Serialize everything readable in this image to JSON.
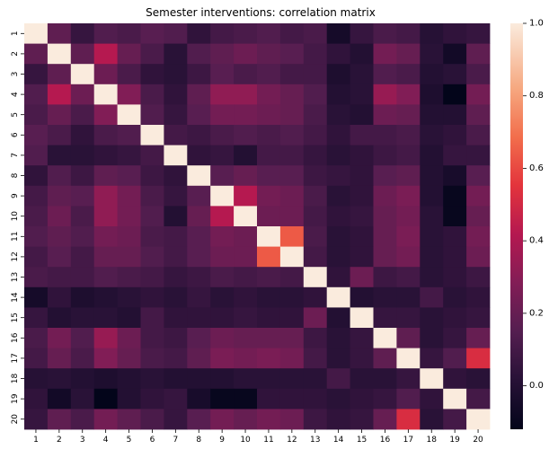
{
  "chart_data": {
    "type": "heatmap",
    "title": "Semester interventions: correlation matrix",
    "xlabel": "",
    "ylabel": "",
    "x_tick_labels": [
      "1",
      "2",
      "3",
      "4",
      "5",
      "6",
      "7",
      "8",
      "9",
      "10",
      "11",
      "12",
      "13",
      "14",
      "15",
      "16",
      "17",
      "18",
      "19",
      "20"
    ],
    "y_tick_labels": [
      "1",
      "2",
      "3",
      "4",
      "5",
      "6",
      "7",
      "8",
      "9",
      "10",
      "11",
      "12",
      "13",
      "14",
      "15",
      "16",
      "17",
      "18",
      "19",
      "20"
    ],
    "colorbar": {
      "range": [
        -0.12,
        1.0
      ],
      "ticks": [
        -0.0,
        0.2,
        0.4,
        0.6,
        0.8,
        1.0
      ],
      "tick_labels": [
        "0.0",
        "0.2",
        "0.4",
        "0.6",
        "0.8",
        "1.0"
      ],
      "colormap": "rocket"
    },
    "matrix": [
      [
        1.0,
        0.18,
        0.06,
        0.14,
        0.12,
        0.16,
        0.14,
        0.04,
        0.1,
        0.12,
        0.14,
        0.1,
        0.12,
        -0.05,
        0.06,
        0.12,
        0.1,
        0.01,
        0.04,
        0.06
      ],
      [
        0.18,
        1.0,
        0.18,
        0.42,
        0.2,
        0.12,
        0.02,
        0.14,
        0.18,
        0.22,
        0.18,
        0.16,
        0.1,
        0.04,
        0.0,
        0.24,
        0.2,
        0.02,
        -0.06,
        0.18
      ],
      [
        0.06,
        0.18,
        1.0,
        0.22,
        0.12,
        0.04,
        0.02,
        0.08,
        0.16,
        0.12,
        0.14,
        0.1,
        0.1,
        -0.02,
        0.02,
        0.14,
        0.12,
        0.0,
        0.02,
        0.12
      ],
      [
        0.14,
        0.42,
        0.22,
        1.0,
        0.28,
        0.12,
        0.04,
        0.18,
        0.32,
        0.32,
        0.24,
        0.2,
        0.14,
        0.0,
        0.02,
        0.34,
        0.28,
        -0.02,
        -0.12,
        0.24
      ],
      [
        0.12,
        0.2,
        0.12,
        0.28,
        1.0,
        0.14,
        0.06,
        0.16,
        0.24,
        0.24,
        0.22,
        0.2,
        0.12,
        0.02,
        0.0,
        0.22,
        0.2,
        0.0,
        0.0,
        0.18
      ],
      [
        0.16,
        0.12,
        0.04,
        0.12,
        0.14,
        1.0,
        0.1,
        0.08,
        0.12,
        0.14,
        0.12,
        0.14,
        0.1,
        0.04,
        0.1,
        0.1,
        0.12,
        0.02,
        0.04,
        0.12
      ],
      [
        0.14,
        0.02,
        0.02,
        0.04,
        0.06,
        0.1,
        1.0,
        0.04,
        0.06,
        0.0,
        0.1,
        0.1,
        0.06,
        0.02,
        0.04,
        0.08,
        0.1,
        0.0,
        0.06,
        0.06
      ],
      [
        0.04,
        0.14,
        0.08,
        0.18,
        0.16,
        0.08,
        0.04,
        1.0,
        0.16,
        0.2,
        0.16,
        0.16,
        0.08,
        0.06,
        0.04,
        0.16,
        0.18,
        0.0,
        -0.04,
        0.16
      ],
      [
        0.1,
        0.18,
        0.16,
        0.32,
        0.24,
        0.12,
        0.06,
        0.16,
        1.0,
        0.42,
        0.24,
        0.22,
        0.12,
        0.02,
        0.04,
        0.22,
        0.26,
        0.0,
        -0.1,
        0.24
      ],
      [
        0.12,
        0.22,
        0.12,
        0.32,
        0.24,
        0.14,
        0.0,
        0.2,
        0.42,
        1.0,
        0.22,
        0.22,
        0.1,
        0.04,
        0.06,
        0.2,
        0.24,
        0.02,
        -0.1,
        0.2
      ],
      [
        0.14,
        0.18,
        0.14,
        0.24,
        0.22,
        0.12,
        0.1,
        0.16,
        0.24,
        0.22,
        1.0,
        0.64,
        0.12,
        0.02,
        0.04,
        0.2,
        0.26,
        0.02,
        0.04,
        0.24
      ],
      [
        0.1,
        0.16,
        0.1,
        0.2,
        0.2,
        0.14,
        0.1,
        0.16,
        0.22,
        0.22,
        0.64,
        1.0,
        0.1,
        0.02,
        0.04,
        0.2,
        0.24,
        0.02,
        0.04,
        0.22
      ],
      [
        0.12,
        0.1,
        0.1,
        0.14,
        0.12,
        0.1,
        0.06,
        0.08,
        0.12,
        0.1,
        0.12,
        0.1,
        1.0,
        0.04,
        0.22,
        0.08,
        0.1,
        0.02,
        0.04,
        0.08
      ],
      [
        -0.05,
        0.04,
        -0.02,
        0.0,
        0.02,
        0.04,
        0.02,
        0.06,
        0.02,
        0.04,
        0.02,
        0.02,
        0.04,
        1.0,
        0.0,
        0.02,
        0.02,
        0.1,
        0.02,
        0.04
      ],
      [
        0.06,
        0.0,
        0.02,
        0.02,
        0.0,
        0.1,
        0.04,
        0.04,
        0.04,
        0.06,
        0.04,
        0.04,
        0.22,
        0.0,
        1.0,
        0.06,
        0.06,
        0.02,
        0.04,
        0.06
      ],
      [
        0.12,
        0.24,
        0.14,
        0.34,
        0.22,
        0.1,
        0.08,
        0.16,
        0.22,
        0.2,
        0.2,
        0.2,
        0.08,
        0.02,
        0.06,
        1.0,
        0.18,
        0.02,
        0.06,
        0.2
      ],
      [
        0.1,
        0.2,
        0.12,
        0.28,
        0.2,
        0.12,
        0.1,
        0.18,
        0.26,
        0.24,
        0.26,
        0.24,
        0.1,
        0.02,
        0.06,
        0.18,
        1.0,
        0.06,
        0.14,
        0.52
      ],
      [
        0.01,
        0.02,
        0.0,
        -0.02,
        0.0,
        0.02,
        0.0,
        0.0,
        0.0,
        0.02,
        0.02,
        0.02,
        0.02,
        0.1,
        0.02,
        0.02,
        0.06,
        1.0,
        0.04,
        0.02
      ],
      [
        0.04,
        -0.06,
        0.02,
        -0.12,
        0.0,
        0.04,
        0.06,
        -0.04,
        -0.1,
        -0.1,
        0.04,
        0.04,
        0.04,
        0.02,
        0.04,
        0.06,
        0.14,
        0.04,
        1.0,
        0.1
      ],
      [
        0.06,
        0.18,
        0.12,
        0.24,
        0.18,
        0.12,
        0.06,
        0.16,
        0.24,
        0.2,
        0.24,
        0.22,
        0.08,
        0.04,
        0.06,
        0.2,
        0.52,
        0.02,
        0.1,
        1.0
      ]
    ]
  }
}
